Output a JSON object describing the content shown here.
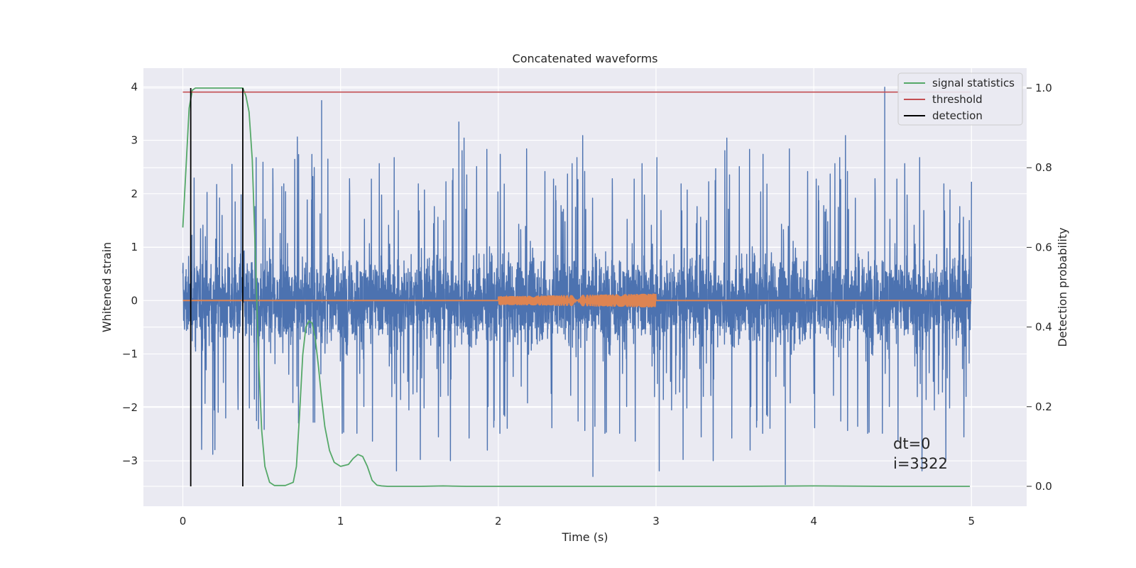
{
  "chart_data": {
    "type": "line",
    "title": "Concatenated waveforms",
    "xlabel": "Time (s)",
    "ylabel": "Whitened strain",
    "y2label": "Detection probability",
    "xlim": [
      -0.25,
      5.35
    ],
    "ylim": [
      -3.85,
      4.35
    ],
    "y2lim": [
      -0.05,
      1.05
    ],
    "xticks": [
      0,
      1,
      2,
      3,
      4,
      5
    ],
    "yticks": [
      -3,
      -2,
      -1,
      0,
      1,
      2,
      3,
      4
    ],
    "y2ticks": [
      0.0,
      0.2,
      0.4,
      0.6,
      0.8,
      1.0
    ],
    "xtick_labels": [
      "0",
      "1",
      "2",
      "3",
      "4",
      "5"
    ],
    "ytick_labels": [
      "−3",
      "−2",
      "−1",
      "0",
      "1",
      "2",
      "3",
      "4"
    ],
    "y2tick_labels": [
      "0.0",
      "0.2",
      "0.4",
      "0.6",
      "0.8",
      "1.0"
    ],
    "grid": true,
    "legend_position": "top-right",
    "series": [
      {
        "name": "",
        "kind": "noise",
        "axis": "left",
        "color": "#4c72b0",
        "x_range": [
          0,
          5
        ],
        "approx_sigma": 0.7,
        "approx_range": [
          -3.3,
          4.0
        ],
        "notable_peaks": [
          {
            "x": 0.88,
            "y": 3.75
          },
          {
            "x": 1.75,
            "y": 3.35
          },
          {
            "x": 4.45,
            "y": 4.0
          },
          {
            "x": 3.82,
            "y": -3.45
          },
          {
            "x": 2.6,
            "y": -3.3
          }
        ]
      },
      {
        "name": "",
        "kind": "injected-waveform",
        "axis": "left",
        "color": "#dd8452",
        "x_range": [
          0,
          5
        ],
        "chirp_segment": {
          "x_start": 2.0,
          "x_end": 3.0,
          "amp_start": 0.08,
          "amp_end": 0.13
        }
      },
      {
        "name": "signal statistics",
        "axis": "right",
        "color": "#55a868",
        "x": [
          0.0,
          0.02,
          0.04,
          0.06,
          0.08,
          0.1,
          0.15,
          0.2,
          0.25,
          0.3,
          0.35,
          0.38,
          0.4,
          0.42,
          0.44,
          0.46,
          0.48,
          0.5,
          0.52,
          0.55,
          0.58,
          0.6,
          0.65,
          0.7,
          0.72,
          0.74,
          0.76,
          0.78,
          0.8,
          0.82,
          0.84,
          0.86,
          0.88,
          0.9,
          0.93,
          0.96,
          1.0,
          1.05,
          1.08,
          1.11,
          1.14,
          1.17,
          1.2,
          1.23,
          1.26,
          1.3,
          1.5,
          1.65,
          1.8,
          2.0,
          2.5,
          3.0,
          3.5,
          4.0,
          4.5,
          4.99
        ],
        "values": [
          0.65,
          0.8,
          0.95,
          0.995,
          1.0,
          1.0,
          1.0,
          1.0,
          1.0,
          1.0,
          1.0,
          1.0,
          0.98,
          0.94,
          0.82,
          0.58,
          0.32,
          0.14,
          0.05,
          0.01,
          0.002,
          0.002,
          0.002,
          0.01,
          0.05,
          0.18,
          0.33,
          0.4,
          0.415,
          0.41,
          0.37,
          0.3,
          0.22,
          0.15,
          0.09,
          0.06,
          0.05,
          0.055,
          0.07,
          0.08,
          0.075,
          0.05,
          0.015,
          0.003,
          0.001,
          0.0,
          0.0,
          0.001,
          0.0,
          0.0,
          0.0,
          0.0,
          0.0,
          0.001,
          0.0,
          0.0
        ]
      },
      {
        "name": "threshold",
        "axis": "right",
        "color": "#c44e52",
        "x": [
          0,
          5
        ],
        "values": [
          0.99,
          0.99
        ]
      },
      {
        "name": "detection",
        "axis": "right",
        "color": "#000000",
        "vlines": [
          {
            "x": 0.05,
            "y0": 0.0,
            "y1": 1.0
          },
          {
            "x": 0.38,
            "y0": 0.0,
            "y1": 1.0
          }
        ]
      }
    ],
    "annotations": [
      "dt=0",
      "i=3322"
    ],
    "colors": {
      "axes_background": "#eaeaf2",
      "grid": "#ffffff",
      "legend_background": "#eaeaf2",
      "legend_border": "#cccccc"
    }
  }
}
